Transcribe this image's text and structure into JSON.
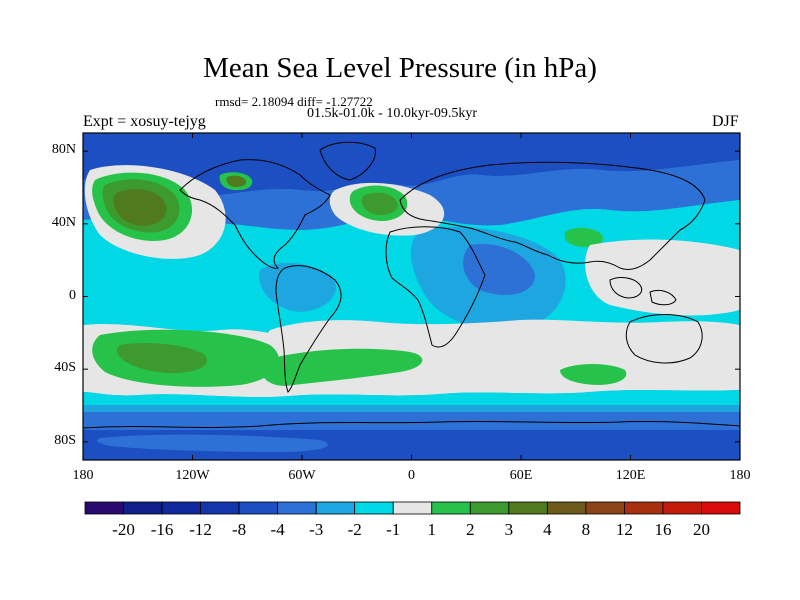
{
  "title": "Mean Sea Level Pressure (in hPa)",
  "stats_line": "rmsd= 2.18094 diff= -1.27722",
  "period_line": "01.5k-01.0k - 10.0kyr-09.5kyr",
  "experiment": "Expt = xosuy-tejyg",
  "season": "DJF",
  "y_ticks": [
    {
      "label": "80N",
      "lat": 80
    },
    {
      "label": "40N",
      "lat": 40
    },
    {
      "label": "0",
      "lat": 0
    },
    {
      "label": "40S",
      "lat": -40
    },
    {
      "label": "80S",
      "lat": -80
    }
  ],
  "x_ticks": [
    {
      "label": "180",
      "lon": -180
    },
    {
      "label": "120W",
      "lon": -120
    },
    {
      "label": "60W",
      "lon": -60
    },
    {
      "label": "0",
      "lon": 0
    },
    {
      "label": "60E",
      "lon": 60
    },
    {
      "label": "120E",
      "lon": 120
    },
    {
      "label": "180",
      "lon": 180
    }
  ],
  "colorbar": {
    "colors": [
      "#2a0a6e",
      "#0f1f8c",
      "#10299e",
      "#1436ad",
      "#1c4fc2",
      "#2d71d6",
      "#1ea6e0",
      "#00d8e6",
      "#e6e6e6",
      "#26c24a",
      "#3c9a2e",
      "#4f7a1e",
      "#6e5a1a",
      "#8a4416",
      "#a8300f",
      "#c41a0a",
      "#d80a0a"
    ],
    "labels": [
      "-20",
      "-16",
      "-12",
      "-8",
      "-4",
      "-3",
      "-2",
      "-1",
      "1",
      "2",
      "3",
      "4",
      "8",
      "12",
      "16",
      "20"
    ]
  },
  "palette": {
    "neg8": "#1436ad",
    "neg4": "#1c4fc2",
    "neg3": "#2d71d6",
    "neg2": "#1ea6e0",
    "neg1": "#00d8e6",
    "zero": "#e6e6e6",
    "pos2": "#26c24a",
    "pos3": "#3c9a2e",
    "pos4": "#4f7a1e",
    "pos8": "#6e5a1a"
  }
}
